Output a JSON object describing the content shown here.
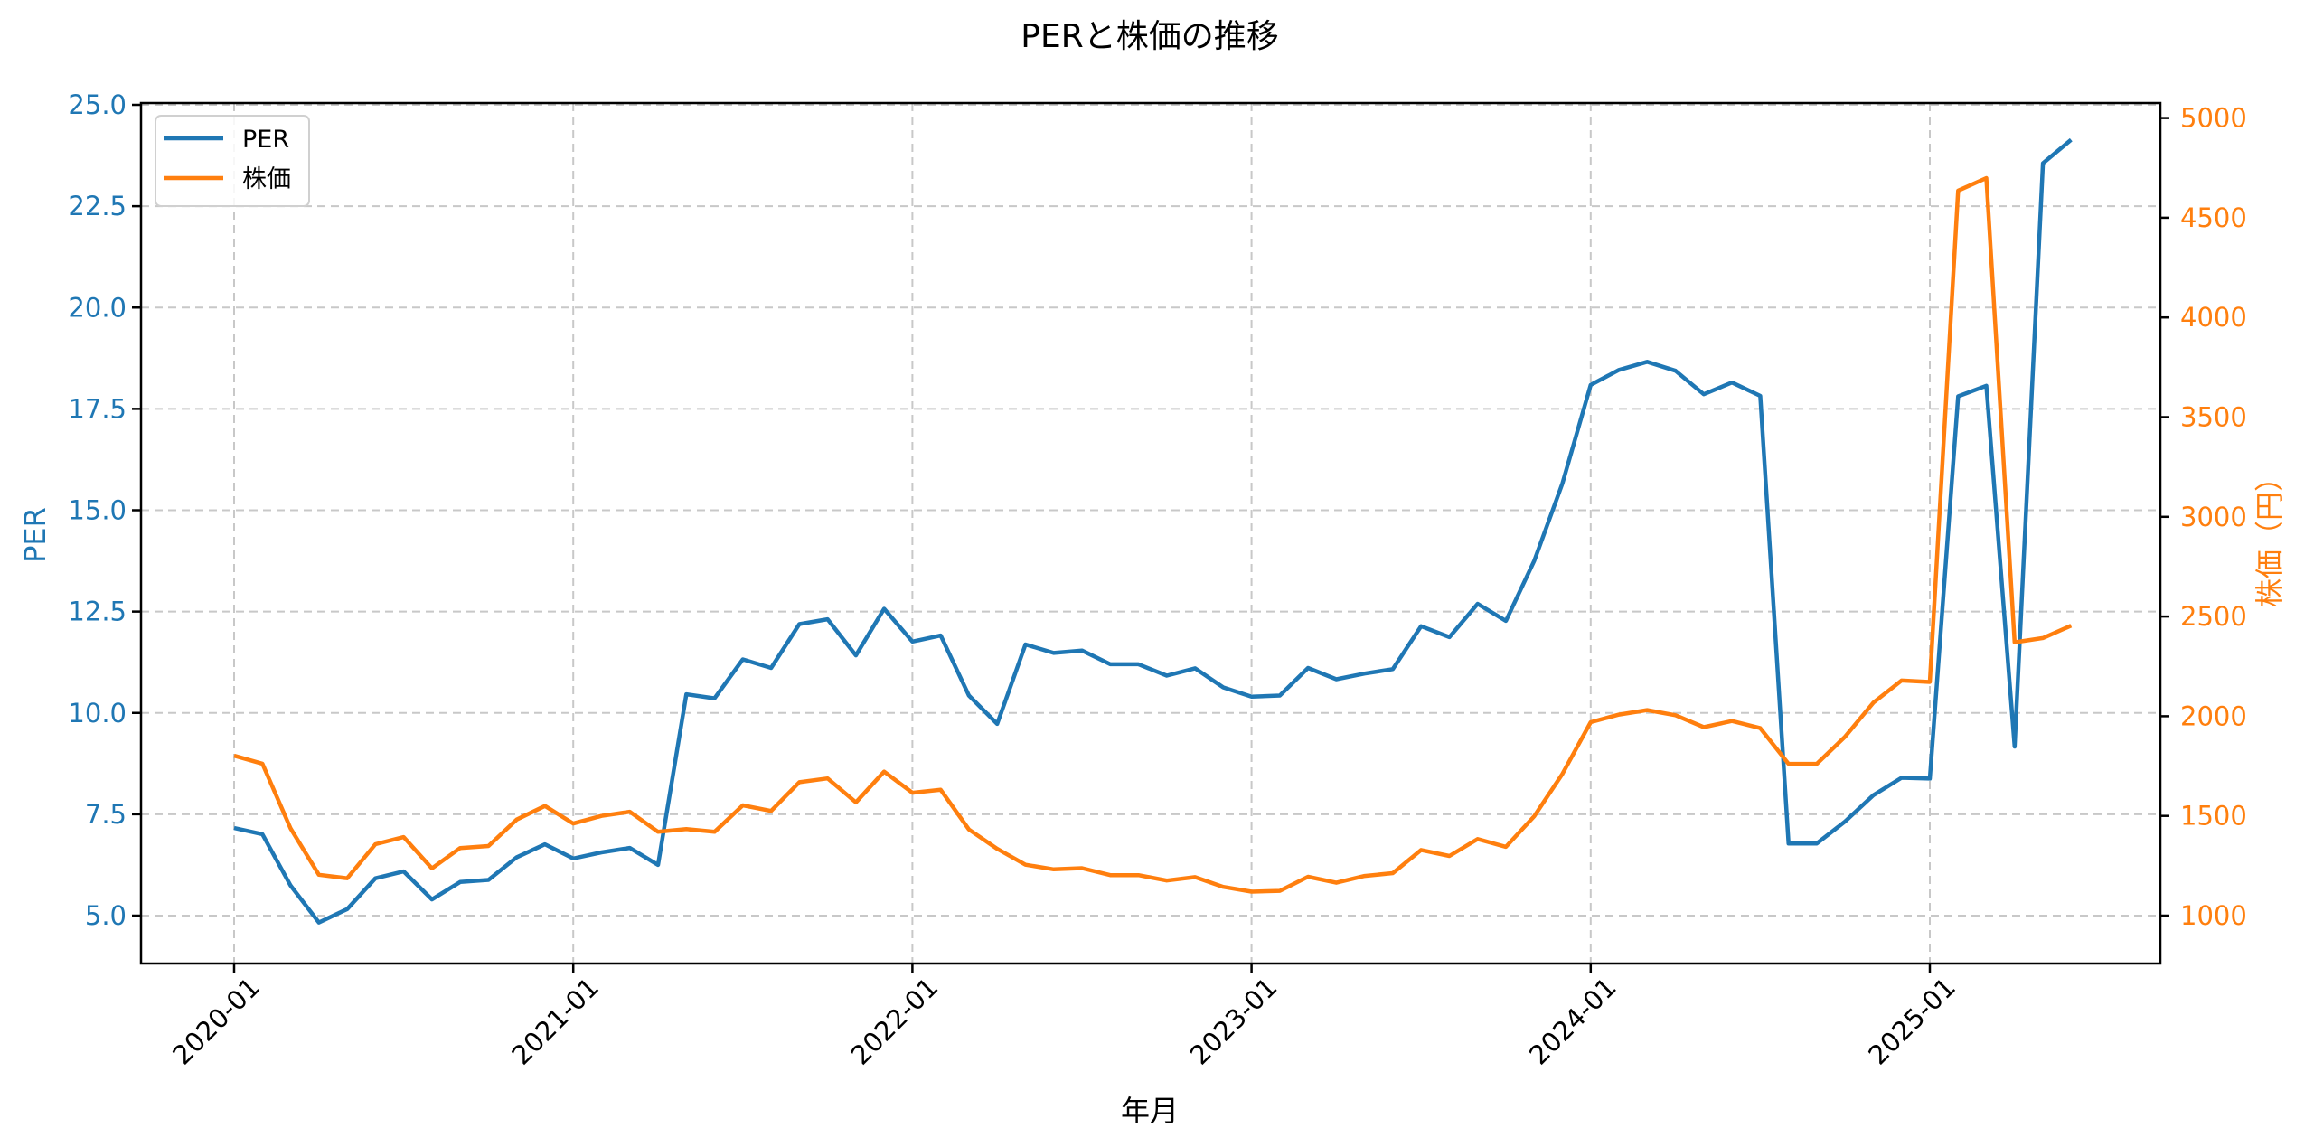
{
  "chart_data": {
    "type": "line",
    "title": "PERと株価の推移",
    "xlabel": "年月",
    "ylabel": "PER",
    "ylabel_right": "株価（円）",
    "ylim": [
      3.8,
      25.1
    ],
    "ylim_right": [
      760,
      5070
    ],
    "xticks": [
      "2020-01",
      "2021-01",
      "2022-01",
      "2023-01",
      "2024-01",
      "2025-01"
    ],
    "yticks": [
      "5.0",
      "7.5",
      "10.0",
      "12.5",
      "15.0",
      "17.5",
      "20.0",
      "22.5",
      "25.0"
    ],
    "yticks_right": [
      "1000",
      "1500",
      "2000",
      "2500",
      "3000",
      "3500",
      "4000",
      "4500",
      "5000"
    ],
    "grid": true,
    "legend_position": "upper left",
    "x": [
      "2020-01",
      "2020-02",
      "2020-03",
      "2020-04",
      "2020-05",
      "2020-06",
      "2020-07",
      "2020-08",
      "2020-09",
      "2020-10",
      "2020-11",
      "2020-12",
      "2021-01",
      "2021-02",
      "2021-03",
      "2021-04",
      "2021-05",
      "2021-06",
      "2021-07",
      "2021-08",
      "2021-09",
      "2021-10",
      "2021-11",
      "2021-12",
      "2022-01",
      "2022-02",
      "2022-03",
      "2022-04",
      "2022-05",
      "2022-06",
      "2022-07",
      "2022-08",
      "2022-09",
      "2022-10",
      "2022-11",
      "2022-12",
      "2023-01",
      "2023-02",
      "2023-03",
      "2023-04",
      "2023-05",
      "2023-06",
      "2023-07",
      "2023-08",
      "2023-09",
      "2023-10",
      "2023-11",
      "2023-12",
      "2024-01",
      "2024-02",
      "2024-03",
      "2024-04",
      "2024-05",
      "2024-06",
      "2024-07",
      "2024-08",
      "2024-09",
      "2024-10",
      "2024-11",
      "2024-12",
      "2025-01",
      "2025-02",
      "2025-03",
      "2025-04",
      "2025-05",
      "2025-06"
    ],
    "series": [
      {
        "name": "PER",
        "axis": "left",
        "color": "#1f77b4",
        "values": [
          7.16,
          7.01,
          5.74,
          4.83,
          5.16,
          5.92,
          6.09,
          5.4,
          5.83,
          5.88,
          6.44,
          6.76,
          6.41,
          6.56,
          6.67,
          6.25,
          10.46,
          10.36,
          11.32,
          11.11,
          12.19,
          12.31,
          11.42,
          12.57,
          11.76,
          11.91,
          10.43,
          9.73,
          11.69,
          11.48,
          11.54,
          11.2,
          11.2,
          10.92,
          11.1,
          10.63,
          10.4,
          10.43,
          11.11,
          10.83,
          10.97,
          11.08,
          12.14,
          11.87,
          12.69,
          12.27,
          13.75,
          15.66,
          18.09,
          18.46,
          18.66,
          18.44,
          17.86,
          18.15,
          17.82,
          6.78,
          6.78,
          7.32,
          7.97,
          8.4,
          8.38,
          17.81,
          18.07,
          9.17,
          23.56,
          24.14
        ]
      },
      {
        "name": "株価",
        "axis": "right",
        "color": "#ff7f0e",
        "values": [
          1802,
          1762,
          1437,
          1205,
          1187,
          1358,
          1394,
          1237,
          1339,
          1349,
          1482,
          1550,
          1462,
          1500,
          1521,
          1420,
          1434,
          1420,
          1553,
          1525,
          1669,
          1688,
          1568,
          1722,
          1616,
          1631,
          1432,
          1335,
          1255,
          1232,
          1238,
          1203,
          1203,
          1176,
          1193,
          1144,
          1120,
          1124,
          1195,
          1165,
          1199,
          1213,
          1329,
          1299,
          1384,
          1345,
          1498,
          1711,
          1970,
          2008,
          2031,
          2005,
          1945,
          1976,
          1940,
          1761,
          1761,
          1897,
          2068,
          2179,
          2172,
          4636,
          4699,
          2371,
          2392,
          2454
        ]
      }
    ]
  },
  "legend": {
    "items": [
      {
        "label": "PER",
        "color": "#1f77b4"
      },
      {
        "label": "株価",
        "color": "#ff7f0e"
      }
    ]
  },
  "colors": {
    "per": "#1f77b4",
    "price": "#ff7f0e",
    "grid": "#c8c8c8",
    "axis": "#000000"
  }
}
